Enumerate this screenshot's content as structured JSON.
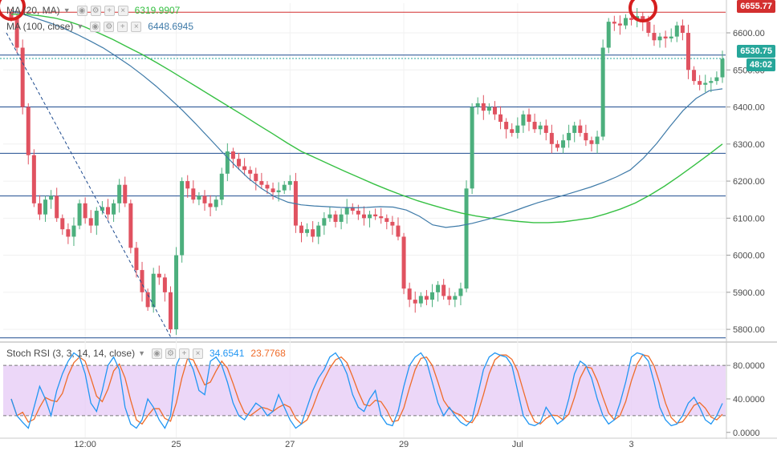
{
  "legend": {
    "ma20": {
      "name": "MA (20, MA)",
      "value": "6319.9907",
      "color": "#36c043"
    },
    "ma100": {
      "name": "MA (100, close)",
      "value": "6448.6945",
      "color": "#3e7aa8"
    },
    "rsi": {
      "name": "Stoch RSI (3, 3, 14, 14, close)",
      "k_value": "34.6541",
      "d_value": "23.7768",
      "k_color": "#2196f3",
      "d_color": "#ef6c2a"
    }
  },
  "price_tags": {
    "top": {
      "label": "6655.77",
      "color": "#d32f2f"
    },
    "current": {
      "label": "6530.75",
      "color": "#26a69a"
    },
    "countdown": {
      "label": "48:02",
      "color": "#26a69a"
    }
  },
  "icons": [
    "eye-icon",
    "gear-icon",
    "plus-icon",
    "close-icon"
  ],
  "chart_data": {
    "type": "line",
    "title": "",
    "price_axis": {
      "ylim": [
        5770,
        6680
      ],
      "ticks": [
        5800,
        5900,
        6000,
        6100,
        6200,
        6300,
        6400,
        6500,
        6600
      ],
      "tick_labels": [
        "5800.00",
        "5900.00",
        "6000.00",
        "6100.00",
        "6200.00",
        "6300.00",
        "6400.00",
        "6500.00",
        "6600.00"
      ]
    },
    "time_axis": {
      "labels": [
        "12:00",
        "25",
        "27",
        "29",
        "Jul",
        "3"
      ],
      "label_index": [
        13,
        29,
        49,
        69,
        89,
        109
      ]
    },
    "horizontal_levels": [
      {
        "value": 6655.77,
        "color": "#d32f2f"
      },
      {
        "value": 6540,
        "color": "#1e4b8f"
      },
      {
        "value": 6400,
        "color": "#1e4b8f"
      },
      {
        "value": 6275,
        "color": "#1e4b8f"
      },
      {
        "value": 6160,
        "color": "#1e4b8f"
      },
      {
        "value": 5777,
        "color": "#1e4b8f"
      }
    ],
    "current_price_line": 6530.75,
    "series": [
      {
        "name": "Price (close)",
        "color_up": "#4caf7d",
        "color_down": "#e05260",
        "values": [
          6640,
          6560,
          6400,
          6270,
          6140,
          6110,
          6150,
          6160,
          6100,
          6070,
          6050,
          6080,
          6140,
          6100,
          6080,
          6120,
          6130,
          6110,
          6140,
          6190,
          6140,
          6020,
          5960,
          5900,
          5860,
          5950,
          5940,
          5900,
          5800,
          6000,
          6200,
          6180,
          6150,
          6160,
          6140,
          6130,
          6150,
          6220,
          6280,
          6260,
          6240,
          6230,
          6220,
          6200,
          6190,
          6180,
          6170,
          6175,
          6190,
          6200,
          6080,
          6060,
          6070,
          6050,
          6080,
          6100,
          6110,
          6090,
          6110,
          6130,
          6120,
          6110,
          6100,
          6110,
          6105,
          6100,
          6090,
          6080,
          6050,
          5910,
          5880,
          5870,
          5890,
          5880,
          5900,
          5920,
          5890,
          5880,
          5890,
          5910,
          6180,
          6400,
          6410,
          6390,
          6400,
          6380,
          6360,
          6340,
          6330,
          6350,
          6380,
          6360,
          6340,
          6350,
          6330,
          6300,
          6290,
          6310,
          6330,
          6350,
          6330,
          6310,
          6300,
          6320,
          6560,
          6630,
          6625,
          6620,
          6640,
          6635,
          6645,
          6630,
          6600,
          6580,
          6590,
          6585,
          6590,
          6620,
          6600,
          6500,
          6470,
          6460,
          6465,
          6470,
          6480,
          6530
        ]
      },
      {
        "name": "MA (20, MA)",
        "color": "#36c043",
        "values": [
          6650,
          6650,
          6646,
          6640,
          6630,
          6617,
          6600,
          6582,
          6562,
          6542,
          6520,
          6497,
          6473,
          6449,
          6425,
          6401,
          6377,
          6352,
          6328,
          6303,
          6280,
          6262,
          6244,
          6226,
          6209,
          6192,
          6176,
          6161,
          6147,
          6135,
          6124,
          6114,
          6106,
          6100,
          6095,
          6091,
          6088,
          6088,
          6090,
          6095,
          6101,
          6112,
          6125,
          6141,
          6162,
          6186,
          6213,
          6241,
          6270,
          6300
        ]
      },
      {
        "name": "MA (100, close)",
        "color": "#3e7aa8",
        "values": [
          6660,
          6649,
          6638,
          6626,
          6612,
          6596,
          6578,
          6559,
          6536,
          6512,
          6485,
          6456,
          6424,
          6391,
          6355,
          6317,
          6279,
          6242,
          6208,
          6180,
          6158,
          6143,
          6136,
          6133,
          6131,
          6129,
          6128,
          6129,
          6131,
          6130,
          6122,
          6105,
          6082,
          6075,
          6079,
          6086,
          6095,
          6105,
          6117,
          6130,
          6142,
          6152,
          6162,
          6173,
          6184,
          6197,
          6212,
          6230,
          6262,
          6301,
          6347,
          6390,
          6423,
          6444,
          6449
        ]
      }
    ],
    "stoch_rsi": {
      "ylim": [
        -5,
        105
      ],
      "ticks": [
        0,
        40,
        80
      ],
      "tick_labels": [
        "0.0000",
        "40.0000",
        "80.0000"
      ],
      "band": [
        20,
        80
      ],
      "k": [
        40,
        20,
        12,
        5,
        30,
        55,
        40,
        20,
        50,
        70,
        85,
        95,
        90,
        70,
        35,
        25,
        50,
        80,
        90,
        75,
        30,
        10,
        5,
        15,
        40,
        30,
        15,
        5,
        20,
        80,
        95,
        90,
        75,
        50,
        45,
        85,
        90,
        80,
        60,
        35,
        20,
        15,
        25,
        35,
        30,
        20,
        25,
        45,
        30,
        15,
        5,
        10,
        30,
        50,
        65,
        75,
        90,
        95,
        85,
        70,
        45,
        30,
        25,
        40,
        50,
        20,
        10,
        8,
        25,
        55,
        80,
        90,
        95,
        85,
        60,
        35,
        20,
        30,
        20,
        12,
        8,
        15,
        45,
        75,
        90,
        95,
        92,
        90,
        80,
        50,
        20,
        10,
        8,
        12,
        30,
        20,
        10,
        15,
        40,
        70,
        85,
        80,
        65,
        40,
        20,
        10,
        15,
        35,
        60,
        90,
        95,
        93,
        85,
        60,
        30,
        15,
        8,
        10,
        20,
        35,
        42,
        30,
        15,
        10,
        20,
        34.65
      ]
    }
  }
}
